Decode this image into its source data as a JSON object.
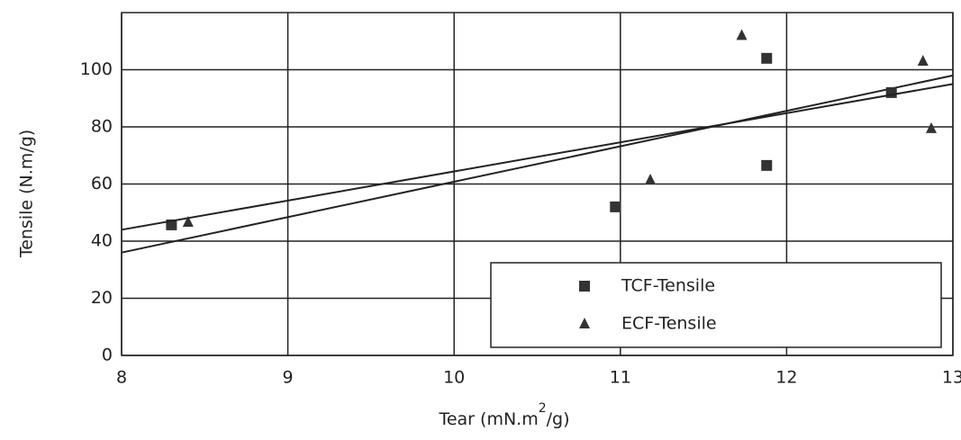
{
  "chart_data": {
    "type": "scatter",
    "x_label": {
      "text": "Tear (mN.m",
      "superscript": "2",
      "suffix": "/g)"
    },
    "y_label": "Tensile (N.m/g)",
    "xlim": [
      8,
      13
    ],
    "xticks": [
      8,
      9,
      10,
      11,
      12,
      13
    ],
    "ylim": [
      0,
      120
    ],
    "yticks": [
      0,
      20,
      40,
      60,
      80,
      100
    ],
    "grid": true,
    "legend": "lower right",
    "series": [
      {
        "name": "TCF-Tensile",
        "marker": "square",
        "color": "#333333",
        "x": [
          8.3,
          10.97,
          11.88,
          11.88,
          12.63
        ],
        "values": [
          45.7,
          52,
          66.5,
          104,
          92
        ],
        "trendline": {
          "x": [
            8,
            13
          ],
          "values": [
            36,
            98
          ]
        }
      },
      {
        "name": "ECF-Tensile",
        "marker": "triangle",
        "color": "#333333",
        "x": [
          8.4,
          11.18,
          11.73,
          12.82,
          12.87
        ],
        "values": [
          46.6,
          61.4,
          112,
          103,
          79.4
        ],
        "trendline": {
          "x": [
            8,
            13
          ],
          "values": [
            44,
            95
          ]
        }
      }
    ]
  }
}
